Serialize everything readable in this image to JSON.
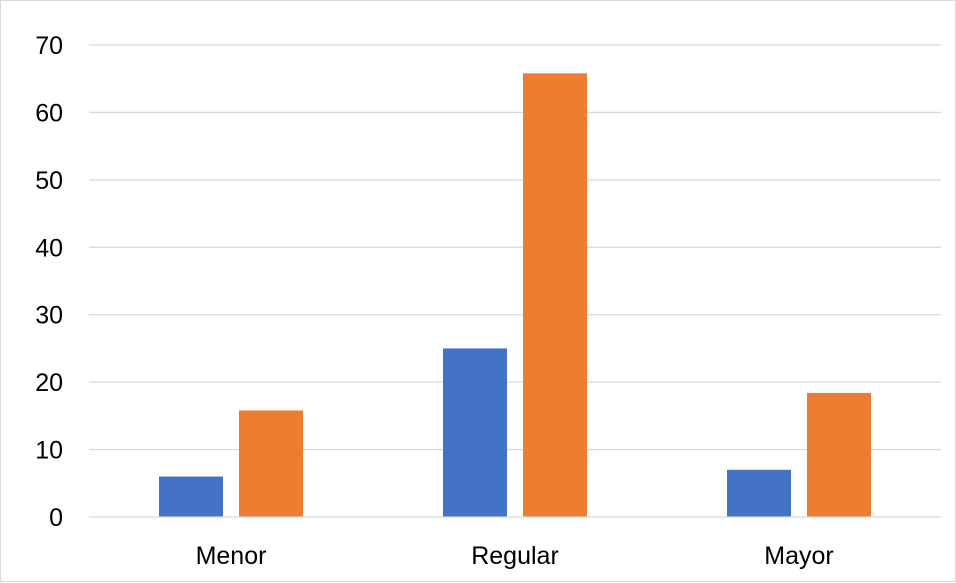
{
  "chart_data": {
    "type": "bar",
    "title": "",
    "xlabel": "",
    "ylabel": "",
    "categories": [
      "Menor",
      "Regular",
      "Mayor"
    ],
    "series": [
      {
        "color": "#4472c4",
        "values": [
          6,
          25,
          7
        ]
      },
      {
        "color": "#ed7d31",
        "values": [
          15.8,
          65.8,
          18.4
        ]
      }
    ],
    "ylim": [
      0,
      70
    ],
    "yticks": [
      0,
      10,
      20,
      30,
      40,
      50,
      60,
      70
    ],
    "grid": true,
    "legend": "none"
  }
}
